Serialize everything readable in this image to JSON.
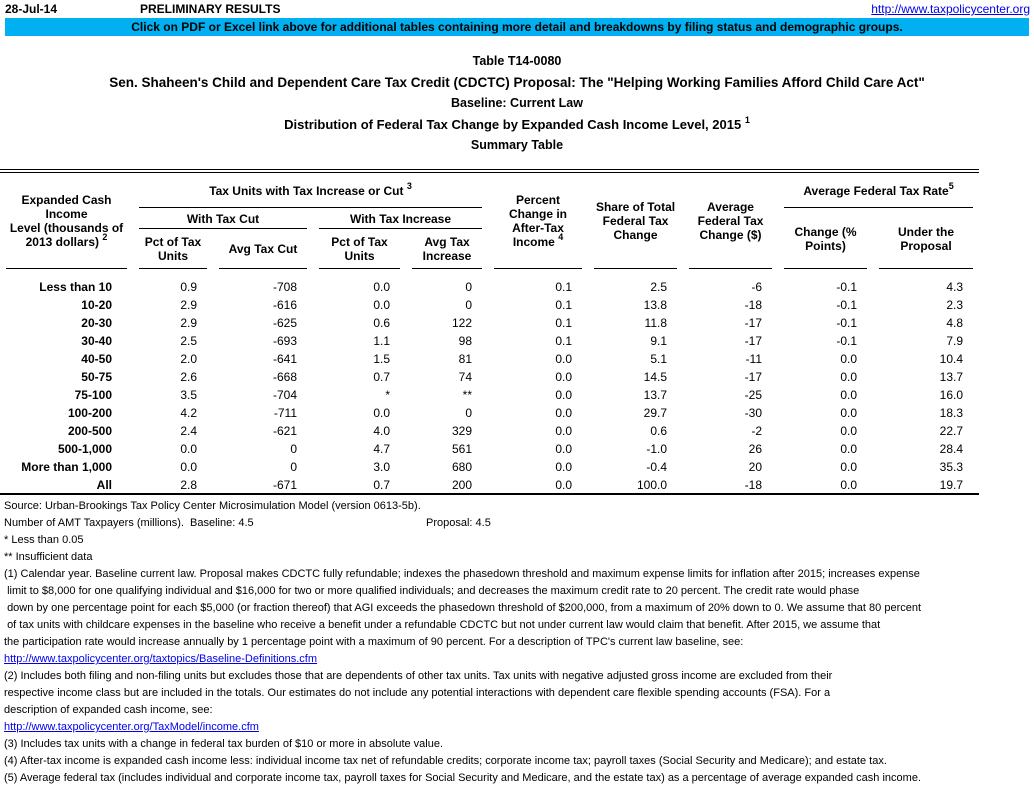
{
  "colors": {
    "banner": "#00B0F0",
    "link": "#0000EE",
    "text": "#000000"
  },
  "topbar": {
    "date": "28-Jul-14",
    "preliminary": "PRELIMINARY RESULTS",
    "url": "http://www.taxpolicycenter.org",
    "banner": "Click on PDF or Excel link above for additional tables containing more detail and breakdowns by filing status and demographic groups."
  },
  "title": {
    "line1": "Table T14-0080",
    "line2": "Sen. Shaheen's Child and Dependent Care Tax Credit (CDCTC) Proposal: The \"Helping Working Families Afford Child Care Act\"",
    "line3": "Baseline: Current Law",
    "line4": "Distribution of Federal Tax Change by Expanded Cash Income Level, 2015",
    "line4_sup": "1",
    "line5": "Summary Table"
  },
  "table": {
    "income_header_lines": [
      "Expanded Cash Income",
      "Level (thousands of",
      "2013 dollars)"
    ],
    "income_header_sup": "2",
    "group_tax_units": "Tax Units with Tax Increase or Cut",
    "group_tax_units_sup": "3",
    "with_tax_cut": "With Tax Cut",
    "with_tax_increase": "With Tax Increase",
    "pct_of_tax_units_cut_lines": [
      "Pct of Tax",
      "Units"
    ],
    "avg_tax_cut": "Avg Tax Cut",
    "pct_of_tax_units_inc_lines": [
      "Pct of Tax",
      "Units"
    ],
    "avg_tax_increase_lines": [
      "Avg Tax",
      "Increase"
    ],
    "pct_change_ati_lines": [
      "Percent",
      "Change in",
      "After-Tax",
      "Income"
    ],
    "pct_change_ati_sup": "4",
    "share_total_lines": [
      "Share of Total",
      "Federal Tax",
      "Change"
    ],
    "avg_fed_tax_change_lines": [
      "Average",
      "Federal Tax",
      "Change ($)"
    ],
    "group_avg_rate": "Average Federal Tax Rate",
    "group_avg_rate_sup": "5",
    "rate_change_lines": [
      "Change (%",
      "Points)"
    ],
    "rate_under_lines": [
      "Under the",
      "Proposal"
    ],
    "rows": [
      [
        "Less than 10",
        "0.9",
        "-708",
        "0.0",
        "0",
        "0.1",
        "2.5",
        "-6",
        "-0.1",
        "4.3"
      ],
      [
        "10-20",
        "2.9",
        "-616",
        "0.0",
        "0",
        "0.1",
        "13.8",
        "-18",
        "-0.1",
        "2.3"
      ],
      [
        "20-30",
        "2.9",
        "-625",
        "0.6",
        "122",
        "0.1",
        "11.8",
        "-17",
        "-0.1",
        "4.8"
      ],
      [
        "30-40",
        "2.5",
        "-693",
        "1.1",
        "98",
        "0.1",
        "9.1",
        "-17",
        "-0.1",
        "7.9"
      ],
      [
        "40-50",
        "2.0",
        "-641",
        "1.5",
        "81",
        "0.0",
        "5.1",
        "-11",
        "0.0",
        "10.4"
      ],
      [
        "50-75",
        "2.6",
        "-668",
        "0.7",
        "74",
        "0.0",
        "14.5",
        "-17",
        "0.0",
        "13.7"
      ],
      [
        "75-100",
        "3.5",
        "-704",
        "*",
        "**",
        "0.0",
        "13.7",
        "-25",
        "0.0",
        "16.0"
      ],
      [
        "100-200",
        "4.2",
        "-711",
        "0.0",
        "0",
        "0.0",
        "29.7",
        "-30",
        "0.0",
        "18.3"
      ],
      [
        "200-500",
        "2.4",
        "-621",
        "4.0",
        "329",
        "0.0",
        "0.6",
        "-2",
        "0.0",
        "22.7"
      ],
      [
        "500-1,000",
        "0.0",
        "0",
        "4.7",
        "561",
        "0.0",
        "-1.0",
        "26",
        "0.0",
        "28.4"
      ],
      [
        "More than 1,000",
        "0.0",
        "0",
        "3.0",
        "680",
        "0.0",
        "-0.4",
        "20",
        "0.0",
        "35.3"
      ],
      [
        "All",
        "2.8",
        "-671",
        "0.7",
        "200",
        "0.0",
        "100.0",
        "-18",
        "0.0",
        "19.7"
      ]
    ]
  },
  "footer": {
    "source": "Source: Urban-Brookings Tax Policy Center Microsimulation Model (version 0613-5b).",
    "amt_left": "Number of AMT Taxpayers (millions).  Baseline: 4.5",
    "amt_proposal": "Proposal: 4.5",
    "star1": "* Less than 0.05",
    "star2": "** Insufficient data",
    "note1_lines": [
      "(1) Calendar year. Baseline current law. Proposal makes CDCTC fully refundable; indexes the phasedown threshold and maximum expense limits for inflation after 2015; increases expense",
      " limit to $8,000 for one qualifying individual and $16,000 for two or more qualified individuals; and decreases the maximum credit rate to 20 percent. The credit rate would phase",
      " down by one percentage point for each $5,000 (or fraction thereof) that AGI exceeds the phasedown threshold of $200,000, from a maximum of 20% down to 0. We assume that 80 percent",
      " of tax units with childcare expenses in the baseline who receive a benefit under a refundable CDCTC but not under current law would claim that benefit. After 2015, we assume that",
      "the participation rate would increase annually by 1 percentage point with a maximum of 90 percent. For a description of TPC's current law baseline, see:"
    ],
    "link1": "http://www.taxpolicycenter.org/taxtopics/Baseline-Definitions.cfm",
    "note2_lines": [
      "(2) Includes both filing and non-filing units but excludes those that are dependents of other tax units. Tax units with negative adjusted gross income are excluded from their",
      "respective income class but are included in the totals. Our estimates do not include any potential interactions with dependent care flexible spending accounts (FSA). For a",
      "description of expanded cash income, see:"
    ],
    "link2": "http://www.taxpolicycenter.org/TaxModel/income.cfm",
    "note3": "(3) Includes tax units with a change in federal tax burden of $10 or more in absolute value.",
    "note4": "(4) After-tax income is expanded cash income less: individual income tax net of refundable credits; corporate income tax; payroll taxes (Social Security and Medicare); and estate tax.",
    "note5": "(5) Average federal tax (includes individual and corporate income tax, payroll taxes for Social Security and Medicare, and the estate tax) as a percentage of average expanded cash income."
  }
}
